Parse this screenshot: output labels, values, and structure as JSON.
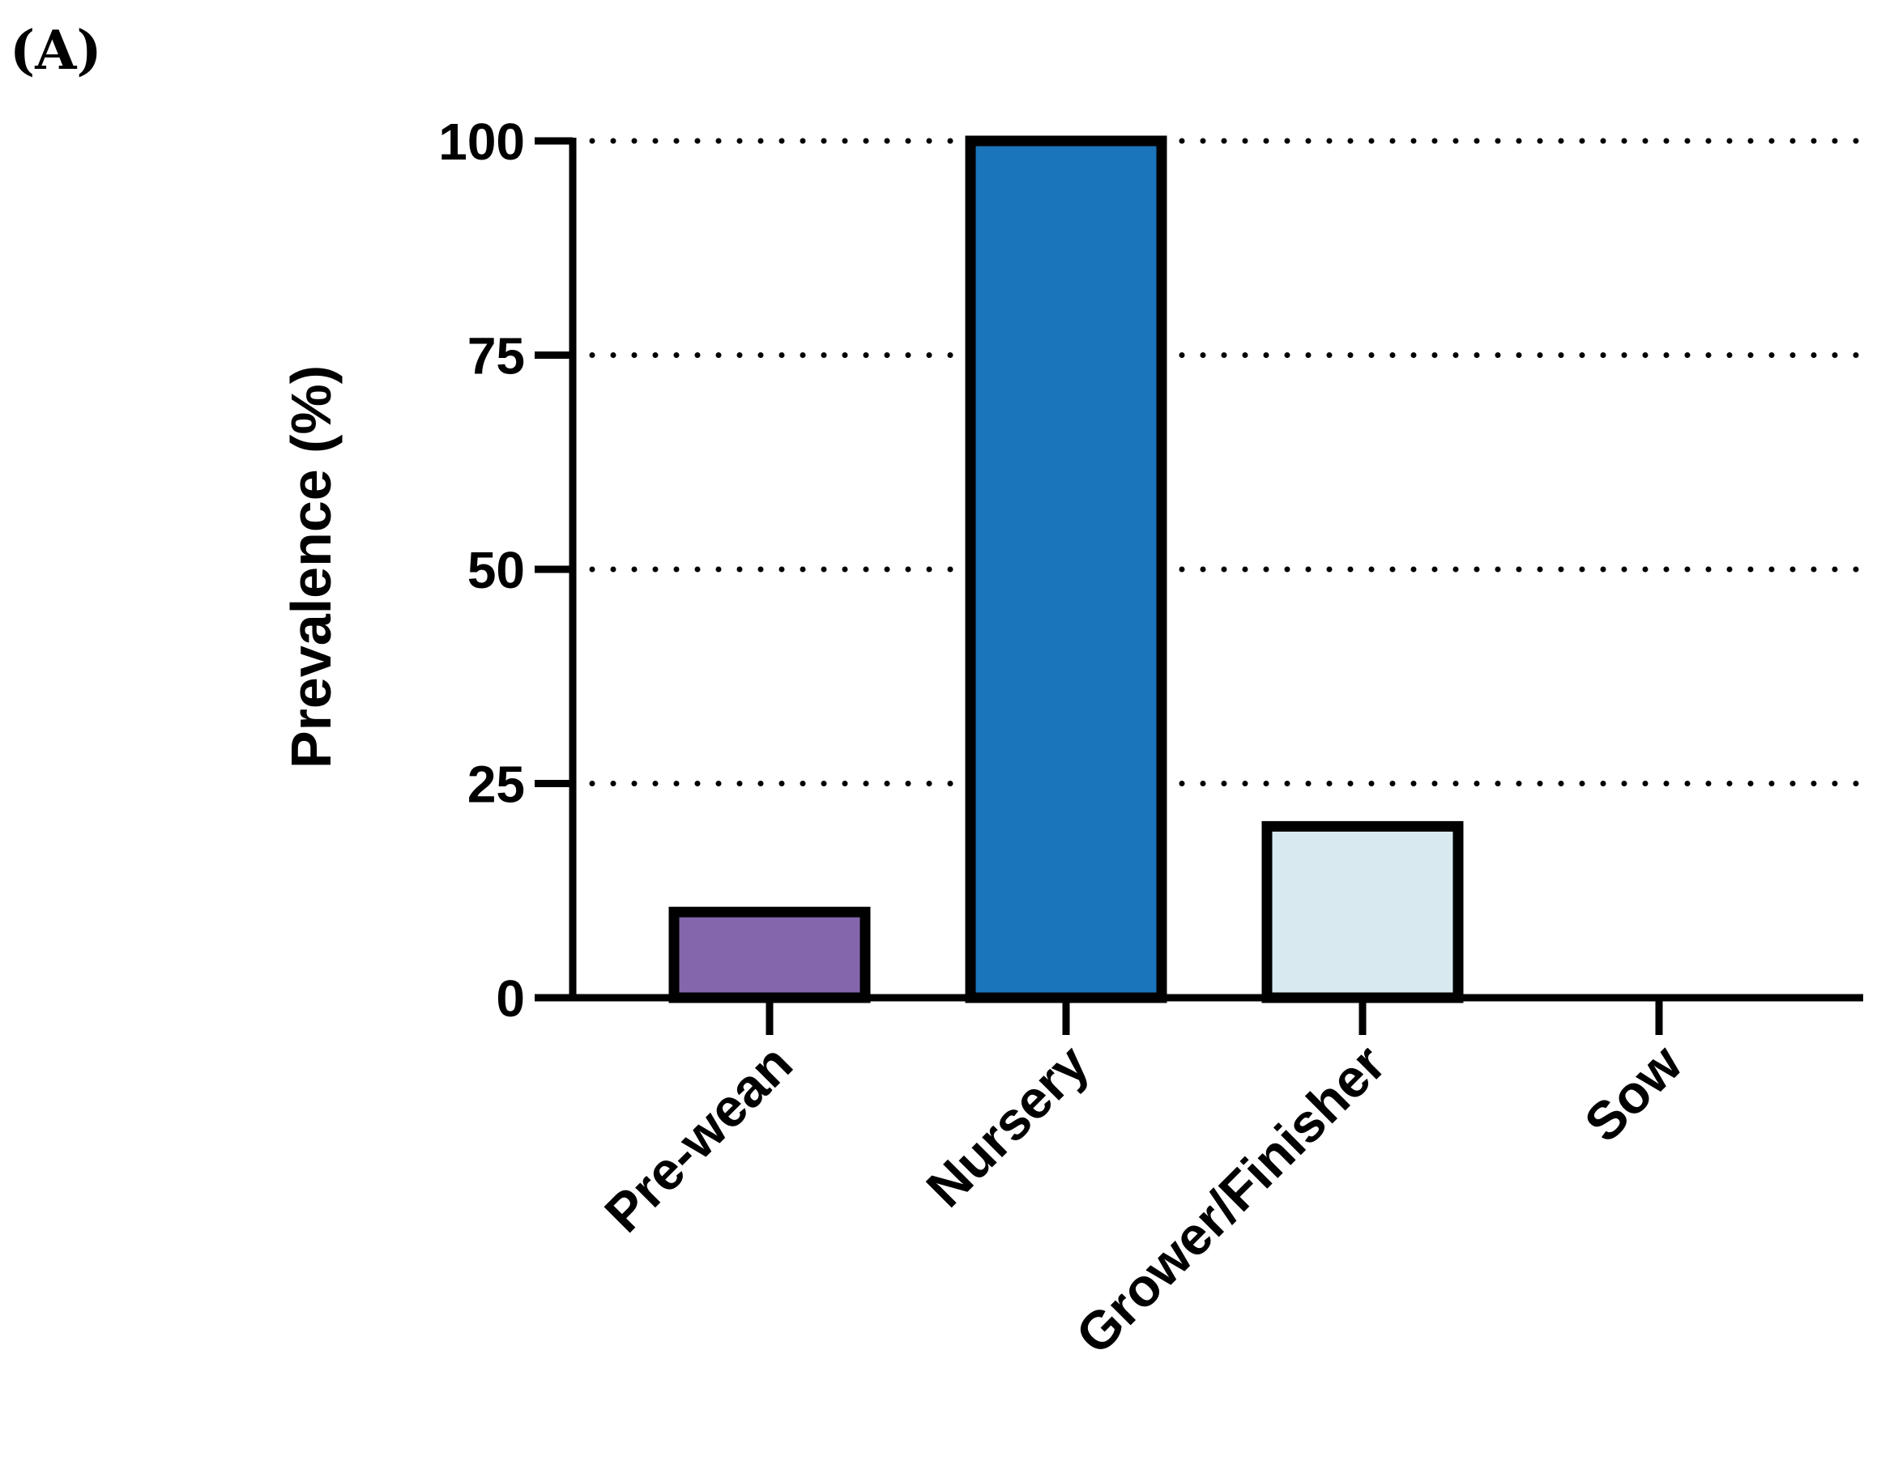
{
  "panel_label": "(A)",
  "chart_data": {
    "type": "bar",
    "title": "",
    "xlabel": "",
    "ylabel": "Prevalence (%)",
    "categories": [
      "Pre-wean",
      "Nursery",
      "Grower/Finisher",
      "Sow"
    ],
    "values": [
      10,
      100,
      20,
      0
    ],
    "colors": [
      "#8466AD",
      "#1B75BB",
      "#D9E9F0",
      "#FFFFFF"
    ],
    "edge_color": "#000000",
    "ylim": [
      0,
      100
    ],
    "yticks": [
      0,
      25,
      50,
      75,
      100
    ],
    "ytick_labels": [
      "0",
      "25",
      "50",
      "75",
      "100"
    ],
    "grid": "horizontal-dotted"
  }
}
